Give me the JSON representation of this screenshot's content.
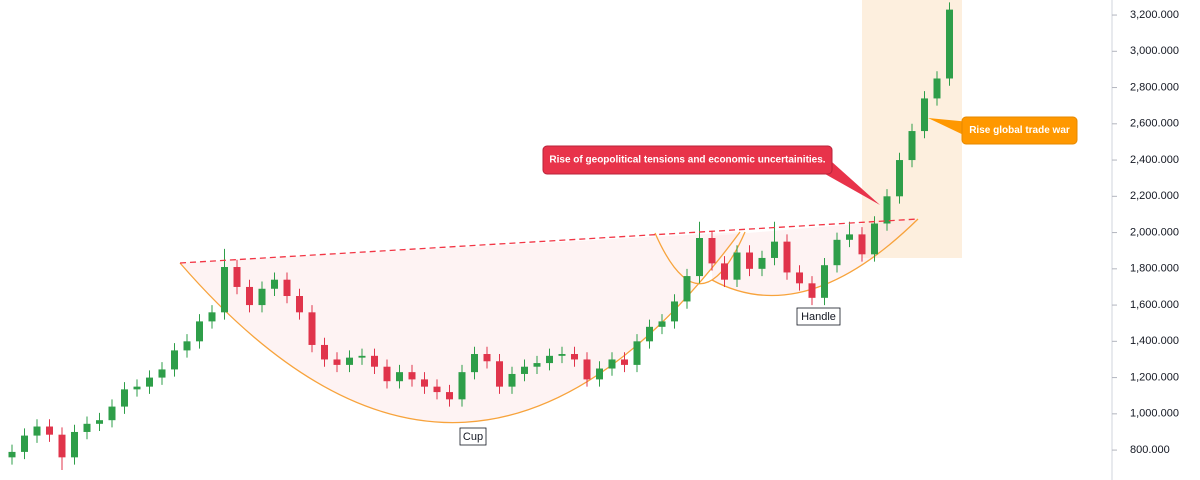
{
  "chart_data": {
    "type": "candlestick",
    "up_color": "#2e9e49",
    "down_color": "#e0344b",
    "ylim": [
      635,
      3283
    ],
    "yticks": [
      {
        "value": 800,
        "label": "800.000"
      },
      {
        "value": 1000,
        "label": "1,000.000"
      },
      {
        "value": 1200,
        "label": "1,200.000"
      },
      {
        "value": 1400,
        "label": "1,400.000"
      },
      {
        "value": 1600,
        "label": "1,600.000"
      },
      {
        "value": 1800,
        "label": "1,800.000"
      },
      {
        "value": 2000,
        "label": "2,000.000"
      },
      {
        "value": 2200,
        "label": "2,200.000"
      },
      {
        "value": 2400,
        "label": "2,400.000"
      },
      {
        "value": 2600,
        "label": "2,600.000"
      },
      {
        "value": 2800,
        "label": "2,800.000"
      },
      {
        "value": 3000,
        "label": "3,000.000"
      },
      {
        "value": 3200,
        "label": "3,200.000"
      }
    ],
    "open": [
      760,
      790,
      880,
      930,
      885,
      760,
      900,
      945,
      965,
      1040,
      1135,
      1150,
      1200,
      1245,
      1350,
      1400,
      1510,
      1560,
      1810,
      1700,
      1600,
      1690,
      1740,
      1650,
      1560,
      1380,
      1300,
      1270,
      1310,
      1320,
      1260,
      1180,
      1230,
      1190,
      1150,
      1120,
      1080,
      1230,
      1330,
      1290,
      1150,
      1220,
      1260,
      1280,
      1320,
      1330,
      1300,
      1190,
      1250,
      1300,
      1270,
      1400,
      1480,
      1510,
      1620,
      1760,
      1970,
      1830,
      1740,
      1890,
      1800,
      1860,
      1950,
      1780,
      1720,
      1640,
      1820,
      1960,
      1990,
      1880,
      2050,
      2200,
      2400,
      2560,
      2740,
      2850
    ],
    "high": [
      830,
      920,
      970,
      970,
      925,
      940,
      985,
      1005,
      1080,
      1175,
      1190,
      1240,
      1285,
      1390,
      1440,
      1550,
      1600,
      1910,
      1850,
      1740,
      1730,
      1780,
      1780,
      1690,
      1600,
      1420,
      1340,
      1350,
      1360,
      1360,
      1300,
      1270,
      1270,
      1230,
      1190,
      1160,
      1270,
      1370,
      1370,
      1330,
      1260,
      1300,
      1320,
      1360,
      1370,
      1370,
      1340,
      1290,
      1340,
      1340,
      1440,
      1520,
      1550,
      1660,
      1800,
      2060,
      2010,
      1870,
      1930,
      1930,
      1900,
      2060,
      1990,
      1820,
      1760,
      1860,
      2000,
      2060,
      2030,
      2090,
      2240,
      2440,
      2600,
      2780,
      2890,
      3270
    ],
    "low": [
      720,
      750,
      840,
      845,
      690,
      720,
      860,
      905,
      925,
      1000,
      1095,
      1110,
      1160,
      1205,
      1310,
      1360,
      1470,
      1520,
      1660,
      1560,
      1560,
      1650,
      1610,
      1520,
      1340,
      1260,
      1230,
      1230,
      1270,
      1220,
      1140,
      1140,
      1150,
      1110,
      1080,
      1040,
      1040,
      1190,
      1250,
      1110,
      1110,
      1180,
      1220,
      1240,
      1280,
      1260,
      1150,
      1150,
      1210,
      1230,
      1230,
      1360,
      1440,
      1470,
      1580,
      1720,
      1790,
      1700,
      1700,
      1760,
      1760,
      1820,
      1740,
      1680,
      1600,
      1600,
      1780,
      1920,
      1840,
      1840,
      2010,
      2160,
      2360,
      2520,
      2700,
      2810
    ],
    "close": [
      790,
      880,
      930,
      885,
      760,
      900,
      945,
      965,
      1040,
      1135,
      1150,
      1200,
      1245,
      1350,
      1400,
      1510,
      1560,
      1810,
      1700,
      1600,
      1690,
      1740,
      1650,
      1560,
      1380,
      1300,
      1270,
      1310,
      1320,
      1260,
      1180,
      1230,
      1190,
      1150,
      1120,
      1080,
      1230,
      1330,
      1290,
      1150,
      1220,
      1260,
      1280,
      1320,
      1330,
      1300,
      1190,
      1250,
      1300,
      1270,
      1400,
      1480,
      1510,
      1620,
      1760,
      1970,
      1830,
      1740,
      1890,
      1800,
      1860,
      1950,
      1780,
      1720,
      1640,
      1820,
      1960,
      1990,
      1880,
      2050,
      2200,
      2400,
      2560,
      2740,
      2850,
      3230
    ],
    "annotations": [
      "Cup",
      "Handle",
      "Rise of geopolitical tensions and economic uncertainities.",
      "Rise global trade war"
    ]
  }
}
